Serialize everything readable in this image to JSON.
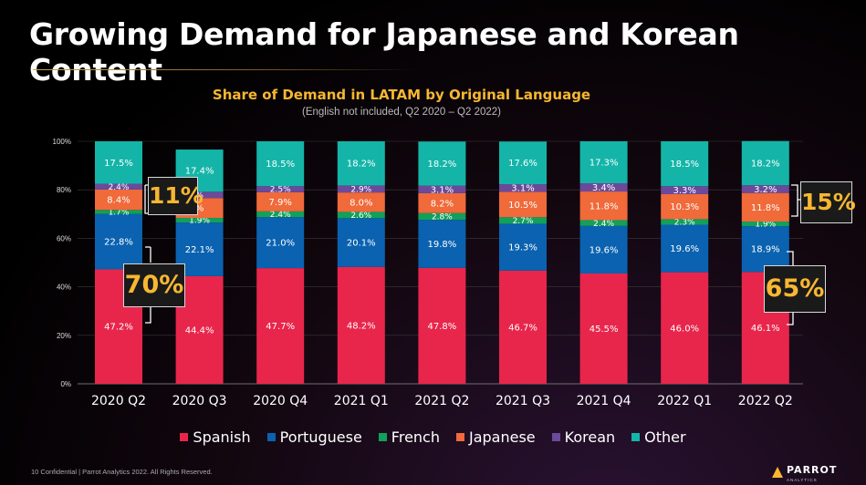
{
  "page": {
    "title": "Growing Demand for Japanese and Korean Content",
    "footer": "10  Confidential | Parrot Analytics 2022. All Rights Reserved.",
    "logo_text": "PARROT",
    "logo_sub": "ANALYTICS"
  },
  "callouts": {
    "japanese_korean_2020": "11%",
    "spanish_2020": "70%",
    "japanese_korean_2022": "15%",
    "spanish_2022": "65%"
  },
  "colors": {
    "Spanish": "#e8264b",
    "Portuguese": "#0a62b0",
    "French": "#12a05a",
    "Japanese": "#f06a3a",
    "Korean": "#6b4a9b",
    "Other": "#14b5a8",
    "accent": "#f7b731"
  },
  "chart_data": {
    "type": "bar",
    "stacked": true,
    "title": "Share of Demand in LATAM by Original Language",
    "subtitle": "(English not included, Q2 2020 – Q2 2022)",
    "categories": [
      "2020 Q2",
      "2020 Q3",
      "2020 Q4",
      "2021 Q1",
      "2021 Q2",
      "2021 Q3",
      "2021 Q4",
      "2022 Q1",
      "2022 Q2"
    ],
    "y_ticks": [
      "0%",
      "20%",
      "40%",
      "60%",
      "80%",
      "100%"
    ],
    "ylim": [
      0,
      100
    ],
    "legend_position": "bottom",
    "series": [
      {
        "name": "Spanish",
        "values": [
          47.2,
          44.4,
          47.7,
          48.2,
          47.8,
          46.7,
          45.5,
          46.0,
          46.1
        ],
        "labels": [
          "47.2%",
          "44.4%",
          "47.7%",
          "48.2%",
          "47.8%",
          "46.7%",
          "45.5%",
          "46.0%",
          "46.1%"
        ]
      },
      {
        "name": "Portuguese",
        "values": [
          22.8,
          22.1,
          21.0,
          20.1,
          19.8,
          19.3,
          19.6,
          19.6,
          18.9
        ],
        "labels": [
          "22.8%",
          "22.1%",
          "21.0%",
          "20.1%",
          "19.8%",
          "19.3%",
          "19.6%",
          "19.6%",
          "18.9%"
        ]
      },
      {
        "name": "French",
        "values": [
          1.7,
          1.9,
          2.4,
          2.6,
          2.8,
          2.7,
          2.4,
          2.3,
          1.9
        ],
        "labels": [
          "1.7%",
          "1.9%",
          "2.4%",
          "2.6%",
          "2.8%",
          "2.7%",
          "2.4%",
          "2.3%",
          "1.9%"
        ]
      },
      {
        "name": "Japanese",
        "values": [
          8.4,
          8.2,
          7.9,
          8.0,
          8.2,
          10.5,
          11.8,
          10.3,
          11.8
        ],
        "labels": [
          "8.4%",
          "%",
          "7.9%",
          "8.0%",
          "8.2%",
          "10.5%",
          "11.8%",
          "10.3%",
          "11.8%"
        ]
      },
      {
        "name": "Korean",
        "values": [
          2.4,
          2.6,
          2.5,
          2.9,
          3.1,
          3.1,
          3.4,
          3.3,
          3.2
        ],
        "labels": [
          "2.4%",
          "%",
          "2.5%",
          "2.9%",
          "3.1%",
          "3.1%",
          "3.4%",
          "3.3%",
          "3.2%"
        ]
      },
      {
        "name": "Other",
        "values": [
          17.5,
          17.4,
          18.5,
          18.2,
          18.2,
          17.6,
          17.3,
          18.5,
          18.2
        ],
        "labels": [
          "17.5%",
          "17.4%",
          "18.5%",
          "18.2%",
          "18.2%",
          "17.6%",
          "17.3%",
          "18.5%",
          "18.2%"
        ]
      }
    ]
  }
}
